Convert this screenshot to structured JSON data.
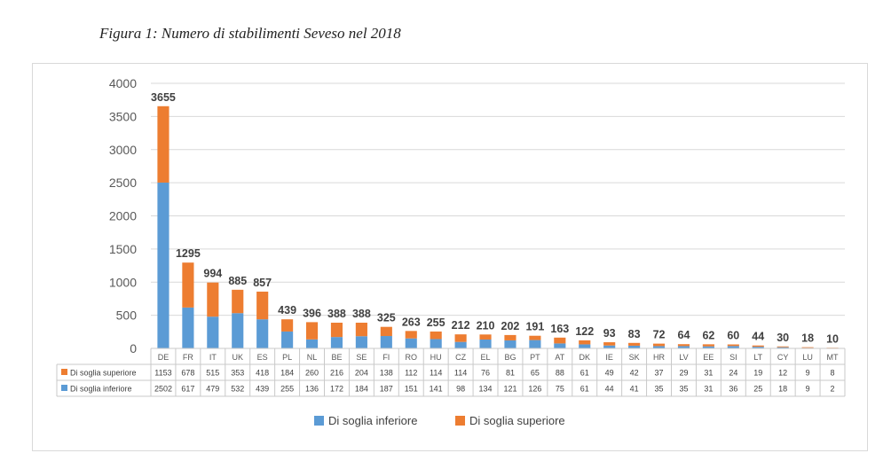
{
  "caption": "Figura 1: Numero di stabilimenti Seveso nel 2018",
  "chart_data": {
    "type": "bar",
    "stacked": true,
    "categories": [
      "DE",
      "FR",
      "IT",
      "UK",
      "ES",
      "PL",
      "NL",
      "BE",
      "SE",
      "FI",
      "RO",
      "HU",
      "CZ",
      "EL",
      "BG",
      "PT",
      "AT",
      "DK",
      "IE",
      "SK",
      "HR",
      "LV",
      "EE",
      "SI",
      "LT",
      "CY",
      "LU",
      "MT"
    ],
    "series": [
      {
        "name": "Di soglia inferiore",
        "color": "#5b9bd5",
        "values": [
          2502,
          617,
          479,
          532,
          439,
          255,
          136,
          172,
          184,
          187,
          151,
          141,
          98,
          134,
          121,
          126,
          75,
          61,
          44,
          41,
          35,
          35,
          31,
          36,
          25,
          18,
          9,
          2
        ]
      },
      {
        "name": "Di soglia superiore",
        "color": "#ed7d31",
        "values": [
          1153,
          678,
          515,
          353,
          418,
          184,
          260,
          216,
          204,
          138,
          112,
          114,
          114,
          76,
          81,
          65,
          88,
          61,
          49,
          42,
          37,
          29,
          31,
          24,
          19,
          12,
          9,
          8
        ]
      }
    ],
    "totals": [
      "3655",
      "1295",
      "994",
      "885",
      "857",
      "439",
      "396",
      "388",
      "388",
      "325",
      "263",
      "255",
      "212",
      "210",
      "202",
      "191",
      "163",
      "122",
      "93",
      "83",
      "72",
      "64",
      "62",
      "60",
      "44",
      "30",
      "18",
      "10"
    ],
    "y_ticks": [
      "0",
      "500",
      "1000",
      "1500",
      "2000",
      "2500",
      "3000",
      "3500",
      "4000"
    ],
    "ylim": [
      0,
      4000
    ],
    "grid": true,
    "data_table": true,
    "legend_position": "bottom",
    "title": "",
    "xlabel": "",
    "ylabel": ""
  }
}
